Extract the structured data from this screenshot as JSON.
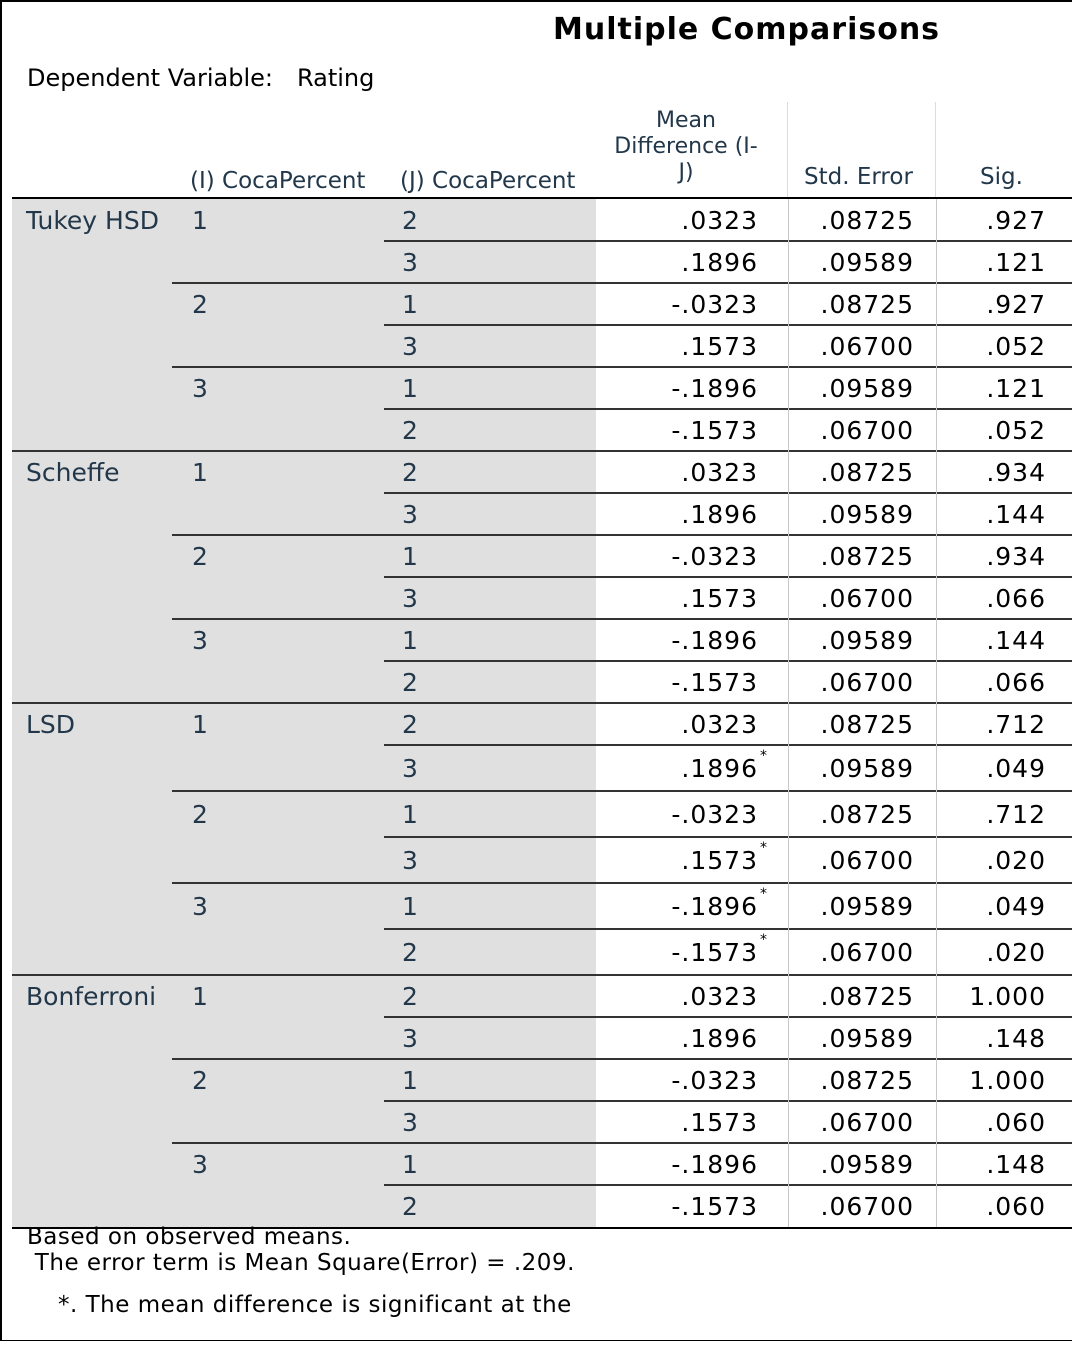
{
  "title": "Multiple Comparisons",
  "dependent_variable": {
    "label": "Dependent Variable:",
    "value": "Rating"
  },
  "columns": {
    "i": "(I) CocaPercent",
    "j": "(J) CocaPercent",
    "mean_diff_line1": "Mean",
    "mean_diff_line2": "Difference (I-",
    "mean_diff_line3": "J)",
    "std_error": "Std. Error",
    "sig": "Sig."
  },
  "rows": [
    {
      "method": "Tukey HSD",
      "i": "1",
      "j": "2",
      "md": ".0323",
      "star": "",
      "se": ".08725",
      "sig": ".927"
    },
    {
      "method": "",
      "i": "",
      "j": "3",
      "md": ".1896",
      "star": "",
      "se": ".09589",
      "sig": ".121"
    },
    {
      "method": "",
      "i": "2",
      "j": "1",
      "md": "-.0323",
      "star": "",
      "se": ".08725",
      "sig": ".927"
    },
    {
      "method": "",
      "i": "",
      "j": "3",
      "md": ".1573",
      "star": "",
      "se": ".06700",
      "sig": ".052"
    },
    {
      "method": "",
      "i": "3",
      "j": "1",
      "md": "-.1896",
      "star": "",
      "se": ".09589",
      "sig": ".121"
    },
    {
      "method": "",
      "i": "",
      "j": "2",
      "md": "-.1573",
      "star": "",
      "se": ".06700",
      "sig": ".052"
    },
    {
      "method": "Scheffe",
      "i": "1",
      "j": "2",
      "md": ".0323",
      "star": "",
      "se": ".08725",
      "sig": ".934"
    },
    {
      "method": "",
      "i": "",
      "j": "3",
      "md": ".1896",
      "star": "",
      "se": ".09589",
      "sig": ".144"
    },
    {
      "method": "",
      "i": "2",
      "j": "1",
      "md": "-.0323",
      "star": "",
      "se": ".08725",
      "sig": ".934"
    },
    {
      "method": "",
      "i": "",
      "j": "3",
      "md": ".1573",
      "star": "",
      "se": ".06700",
      "sig": ".066"
    },
    {
      "method": "",
      "i": "3",
      "j": "1",
      "md": "-.1896",
      "star": "",
      "se": ".09589",
      "sig": ".144"
    },
    {
      "method": "",
      "i": "",
      "j": "2",
      "md": "-.1573",
      "star": "",
      "se": ".06700",
      "sig": ".066"
    },
    {
      "method": "LSD",
      "i": "1",
      "j": "2",
      "md": ".0323",
      "star": "",
      "se": ".08725",
      "sig": ".712"
    },
    {
      "method": "",
      "i": "",
      "j": "3",
      "md": ".1896",
      "star": "*",
      "se": ".09589",
      "sig": ".049"
    },
    {
      "method": "",
      "i": "2",
      "j": "1",
      "md": "-.0323",
      "star": "",
      "se": ".08725",
      "sig": ".712"
    },
    {
      "method": "",
      "i": "",
      "j": "3",
      "md": ".1573",
      "star": "*",
      "se": ".06700",
      "sig": ".020"
    },
    {
      "method": "",
      "i": "3",
      "j": "1",
      "md": "-.1896",
      "star": "*",
      "se": ".09589",
      "sig": ".049"
    },
    {
      "method": "",
      "i": "",
      "j": "2",
      "md": "-.1573",
      "star": "*",
      "se": ".06700",
      "sig": ".020"
    },
    {
      "method": "Bonferroni",
      "i": "1",
      "j": "2",
      "md": ".0323",
      "star": "",
      "se": ".08725",
      "sig": "1.000"
    },
    {
      "method": "",
      "i": "",
      "j": "3",
      "md": ".1896",
      "star": "",
      "se": ".09589",
      "sig": ".148"
    },
    {
      "method": "",
      "i": "2",
      "j": "1",
      "md": "-.0323",
      "star": "",
      "se": ".08725",
      "sig": "1.000"
    },
    {
      "method": "",
      "i": "",
      "j": "3",
      "md": ".1573",
      "star": "",
      "se": ".06700",
      "sig": ".060"
    },
    {
      "method": "",
      "i": "3",
      "j": "1",
      "md": "-.1896",
      "star": "",
      "se": ".09589",
      "sig": ".148"
    },
    {
      "method": "",
      "i": "",
      "j": "2",
      "md": "-.1573",
      "star": "",
      "se": ".06700",
      "sig": ".060"
    }
  ],
  "footnotes": {
    "line1": "Based on observed means.",
    "line2": " The error term is Mean Square(Error) = .209.",
    "line3": "*. The mean difference is significant at the"
  }
}
